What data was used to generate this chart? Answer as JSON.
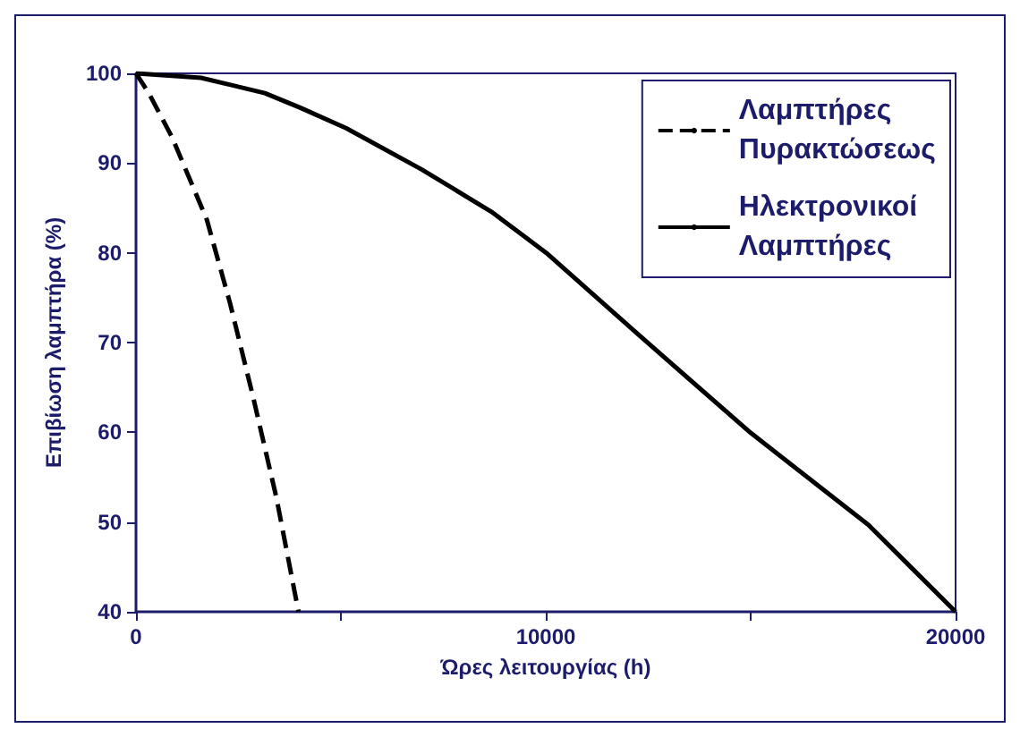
{
  "chart_data": {
    "type": "line",
    "xlabel": "Ώρες λειτουργίας (h)",
    "ylabel": "Επιβίωση λαμπτήρα (%)",
    "xlim": [
      0,
      20000
    ],
    "xticks": [
      0,
      {
        "value": 5000,
        "label": null
      },
      10000,
      {
        "value": 15000,
        "label": null
      },
      20000
    ],
    "ylim": [
      40,
      100
    ],
    "yticks": [
      40,
      50,
      60,
      70,
      80,
      90,
      100
    ],
    "grid": false,
    "legend": "top right",
    "marker": "none",
    "series": [
      {
        "name": "Λαμπτήρες Πυρακτώσεως",
        "color": "#000000",
        "line_style": "dashed",
        "x": [
          0,
          312,
          878,
          1728,
          2294,
          2860,
          3427,
          3965
        ],
        "values": [
          100,
          97.8,
          92.9,
          83.7,
          74.4,
          63.9,
          52.7,
          40
        ]
      },
      {
        "name": "Ηλεκτρονικοί Λαμπτήρες",
        "color": "#000000",
        "line_style": "solid",
        "x": [
          0,
          1586,
          3144,
          3993,
          5126,
          6967,
          8666,
          10011,
          12206,
          15010,
          17870,
          20000
        ],
        "values": [
          100,
          99.5,
          97.8,
          96.2,
          93.9,
          89.3,
          84.6,
          80,
          71.1,
          59.9,
          49.7,
          40
        ]
      }
    ]
  }
}
